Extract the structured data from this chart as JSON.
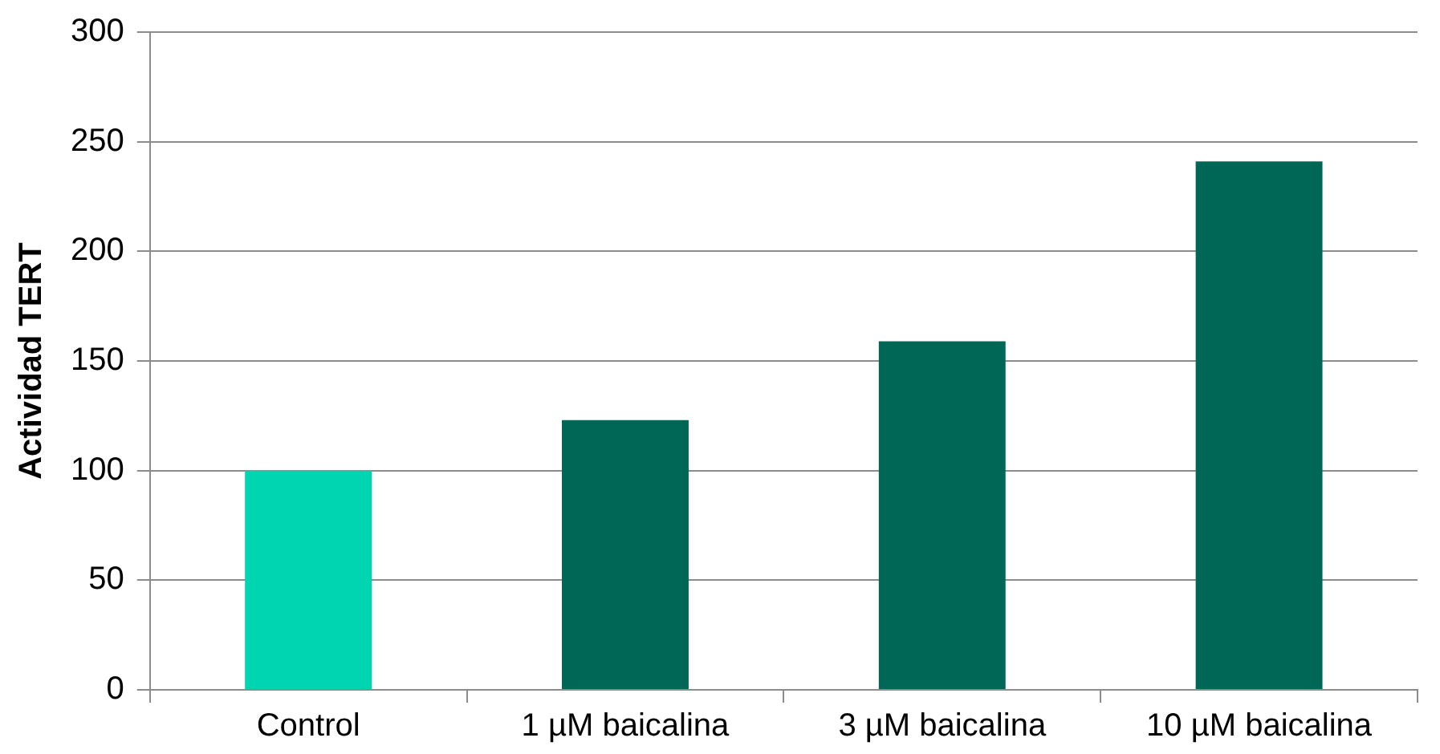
{
  "chart_data": {
    "type": "bar",
    "ylabel": "Actividad TERT",
    "categories": [
      "Control",
      "1 µM baicalina",
      "3 µM baicalina",
      "10 µM baicalina"
    ],
    "values": [
      100,
      123,
      159,
      241
    ],
    "colors": [
      "#00d5b1",
      "#006756",
      "#006756",
      "#006756"
    ],
    "ylim": [
      0,
      300
    ],
    "yticks": [
      0,
      50,
      100,
      150,
      200,
      250,
      300
    ],
    "grid": "y"
  }
}
